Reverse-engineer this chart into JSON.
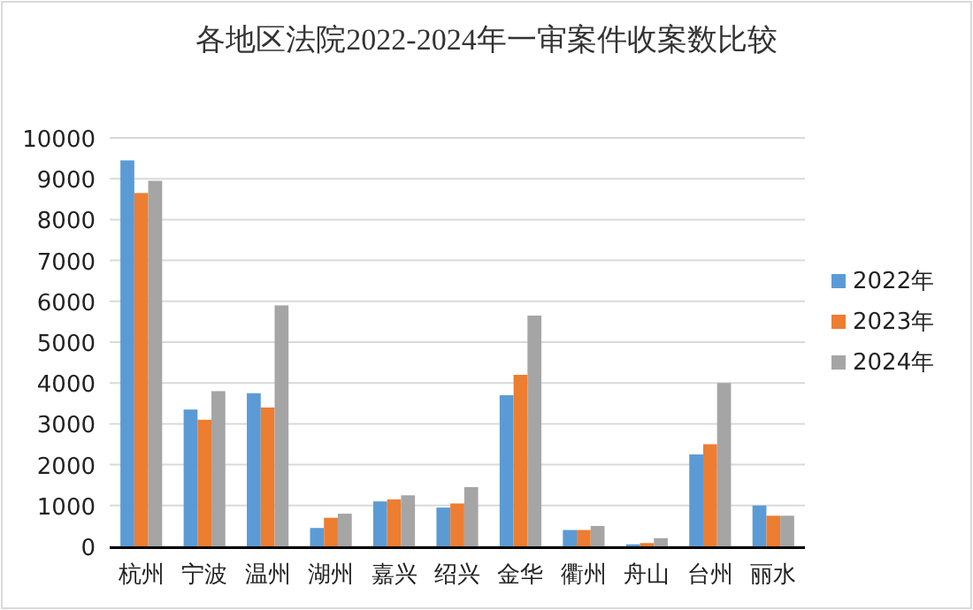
{
  "chart_data": {
    "type": "bar",
    "title": "各地区法院2022-2024年一审案件收案数比较",
    "categories": [
      "杭州",
      "宁波",
      "温州",
      "湖州",
      "嘉兴",
      "绍兴",
      "金华",
      "衢州",
      "舟山",
      "台州",
      "丽水"
    ],
    "series": [
      {
        "name": "2022年",
        "color": "#5b9bd5",
        "values": [
          9450,
          3350,
          3750,
          450,
          1100,
          950,
          3700,
          400,
          50,
          2250,
          1000
        ]
      },
      {
        "name": "2023年",
        "color": "#ed7d31",
        "values": [
          8650,
          3100,
          3400,
          700,
          1150,
          1050,
          4200,
          400,
          80,
          2500,
          750
        ]
      },
      {
        "name": "2024年",
        "color": "#a5a5a5",
        "values": [
          8950,
          3800,
          5900,
          800,
          1250,
          1450,
          5650,
          500,
          200,
          4000,
          750
        ]
      }
    ],
    "ylim": [
      0,
      10000
    ],
    "yticks": [
      0,
      1000,
      2000,
      3000,
      4000,
      5000,
      6000,
      7000,
      8000,
      9000,
      10000
    ],
    "grid": "y",
    "legend": "right"
  }
}
